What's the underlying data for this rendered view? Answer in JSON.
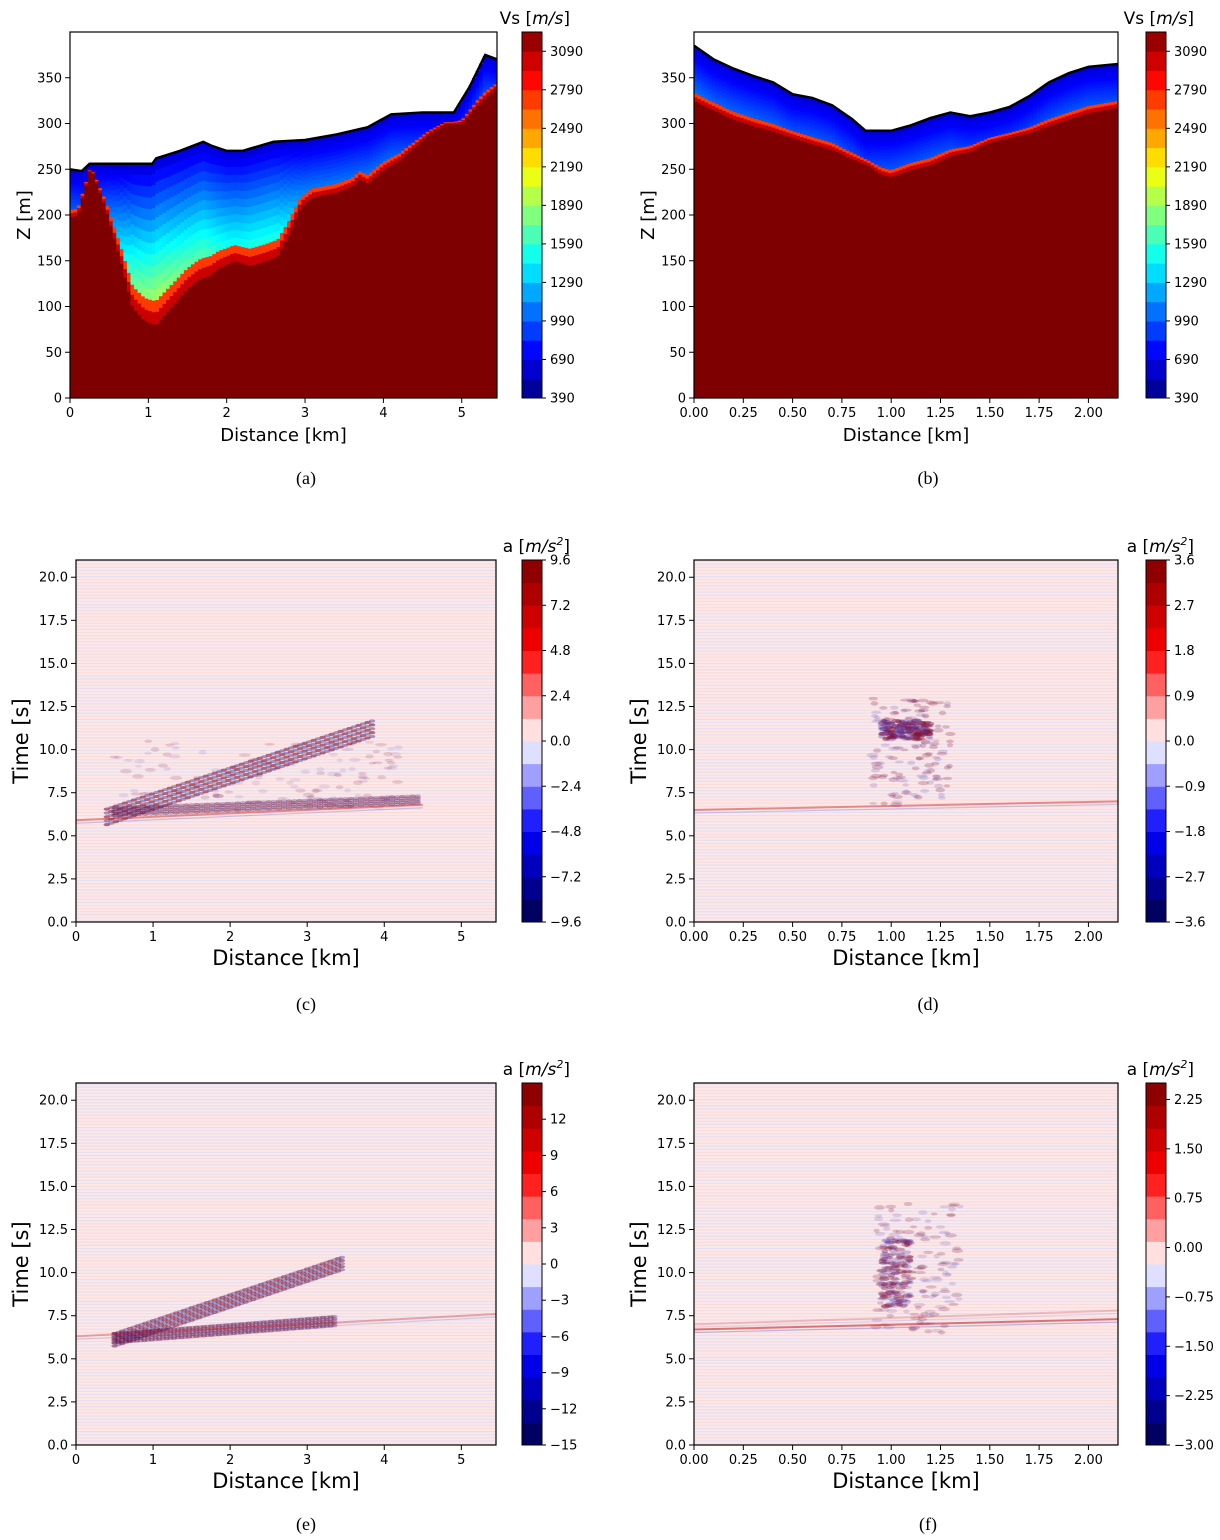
{
  "panels": [
    {
      "id": "a",
      "caption": "(a)",
      "chart_data": {
        "type": "heatmap",
        "kind": "velocity_section",
        "xlabel": "Distance [km]",
        "ylabel": "Z [m]",
        "xlim": [
          0,
          5.45
        ],
        "ylim": [
          0,
          400
        ],
        "xticks": [
          0,
          1,
          2,
          3,
          4,
          5
        ],
        "xtick_labels": [
          "0",
          "1",
          "2",
          "3",
          "4",
          "5"
        ],
        "yticks": [
          0,
          50,
          100,
          150,
          200,
          250,
          300,
          350
        ],
        "ytick_labels": [
          "0",
          "50",
          "100",
          "150",
          "200",
          "250",
          "300",
          "350"
        ],
        "colorbar_label": "Vs [m/s]",
        "colorbar_range": [
          390,
          3240
        ],
        "colorbar_ticks": [
          390,
          690,
          990,
          1290,
          1590,
          1890,
          2190,
          2490,
          2790,
          3090
        ],
        "colorbar_tick_labels": [
          "390",
          "690",
          "990",
          "1290",
          "1590",
          "1890",
          "2190",
          "2490",
          "2790",
          "3090"
        ],
        "colormap": "jet",
        "surface": [
          [
            0,
            250
          ],
          [
            0.15,
            248
          ],
          [
            0.25,
            256
          ],
          [
            1.05,
            256
          ],
          [
            1.1,
            262
          ],
          [
            1.4,
            270
          ],
          [
            1.7,
            280
          ],
          [
            1.8,
            276
          ],
          [
            2.0,
            270
          ],
          [
            2.2,
            270
          ],
          [
            2.6,
            280
          ],
          [
            3.0,
            282
          ],
          [
            3.4,
            288
          ],
          [
            3.8,
            296
          ],
          [
            4.1,
            310
          ],
          [
            4.5,
            312
          ],
          [
            4.9,
            312
          ],
          [
            5.1,
            340
          ],
          [
            5.3,
            375
          ],
          [
            5.45,
            370
          ]
        ],
        "basement": [
          [
            0,
            198
          ],
          [
            0.1,
            200
          ],
          [
            0.25,
            248
          ],
          [
            0.3,
            245
          ],
          [
            0.45,
            210
          ],
          [
            0.65,
            150
          ],
          [
            0.8,
            100
          ],
          [
            0.95,
            85
          ],
          [
            1.1,
            80
          ],
          [
            1.3,
            100
          ],
          [
            1.5,
            120
          ],
          [
            1.65,
            130
          ],
          [
            1.8,
            135
          ],
          [
            1.9,
            142
          ],
          [
            2.1,
            150
          ],
          [
            2.3,
            145
          ],
          [
            2.5,
            150
          ],
          [
            2.65,
            155
          ],
          [
            2.8,
            180
          ],
          [
            2.95,
            210
          ],
          [
            3.1,
            220
          ],
          [
            3.4,
            225
          ],
          [
            3.6,
            232
          ],
          [
            3.7,
            240
          ],
          [
            3.8,
            235
          ],
          [
            4.0,
            250
          ],
          [
            4.2,
            260
          ],
          [
            4.4,
            275
          ],
          [
            4.6,
            290
          ],
          [
            4.8,
            300
          ],
          [
            5.0,
            300
          ],
          [
            5.2,
            320
          ],
          [
            5.45,
            340
          ]
        ]
      }
    },
    {
      "id": "b",
      "caption": "(b)",
      "chart_data": {
        "type": "heatmap",
        "kind": "velocity_section",
        "xlabel": "Distance [km]",
        "ylabel": "Z [m]",
        "xlim": [
          0,
          2.15
        ],
        "ylim": [
          0,
          400
        ],
        "xticks": [
          0,
          0.25,
          0.5,
          0.75,
          1.0,
          1.25,
          1.5,
          1.75,
          2.0
        ],
        "xtick_labels": [
          "0.00",
          "0.25",
          "0.50",
          "0.75",
          "1.00",
          "1.25",
          "1.50",
          "1.75",
          "2.00"
        ],
        "yticks": [
          0,
          50,
          100,
          150,
          200,
          250,
          300,
          350
        ],
        "ytick_labels": [
          "0",
          "50",
          "100",
          "150",
          "200",
          "250",
          "300",
          "350"
        ],
        "colorbar_label": "Vs [m/s]",
        "colorbar_range": [
          390,
          3240
        ],
        "colorbar_ticks": [
          390,
          690,
          990,
          1290,
          1590,
          1890,
          2190,
          2490,
          2790,
          3090
        ],
        "colorbar_tick_labels": [
          "390",
          "690",
          "990",
          "1290",
          "1590",
          "1890",
          "2190",
          "2490",
          "2790",
          "3090"
        ],
        "colormap": "jet",
        "surface": [
          [
            0,
            385
          ],
          [
            0.1,
            370
          ],
          [
            0.2,
            360
          ],
          [
            0.3,
            352
          ],
          [
            0.4,
            345
          ],
          [
            0.5,
            332
          ],
          [
            0.6,
            328
          ],
          [
            0.7,
            320
          ],
          [
            0.8,
            305
          ],
          [
            0.87,
            292
          ],
          [
            1.0,
            292
          ],
          [
            1.1,
            298
          ],
          [
            1.2,
            306
          ],
          [
            1.3,
            312
          ],
          [
            1.4,
            308
          ],
          [
            1.5,
            312
          ],
          [
            1.6,
            318
          ],
          [
            1.7,
            330
          ],
          [
            1.8,
            345
          ],
          [
            1.9,
            355
          ],
          [
            2.0,
            362
          ],
          [
            2.15,
            365
          ]
        ],
        "basement": [
          [
            0,
            325
          ],
          [
            0.1,
            315
          ],
          [
            0.2,
            305
          ],
          [
            0.3,
            298
          ],
          [
            0.4,
            292
          ],
          [
            0.5,
            285
          ],
          [
            0.6,
            278
          ],
          [
            0.7,
            272
          ],
          [
            0.8,
            262
          ],
          [
            0.88,
            255
          ],
          [
            0.95,
            245
          ],
          [
            1.0,
            242
          ],
          [
            1.1,
            250
          ],
          [
            1.2,
            255
          ],
          [
            1.3,
            265
          ],
          [
            1.4,
            270
          ],
          [
            1.5,
            280
          ],
          [
            1.6,
            285
          ],
          [
            1.7,
            290
          ],
          [
            1.8,
            298
          ],
          [
            1.9,
            305
          ],
          [
            2.0,
            312
          ],
          [
            2.15,
            318
          ]
        ]
      }
    },
    {
      "id": "c",
      "caption": "(c)",
      "chart_data": {
        "type": "heatmap",
        "kind": "seismogram_section",
        "xlabel": "Distance [km]",
        "ylabel": "Time [s]",
        "xlim": [
          0,
          5.45
        ],
        "ylim": [
          0,
          21
        ],
        "xticks": [
          0,
          1,
          2,
          3,
          4,
          5
        ],
        "xtick_labels": [
          "0",
          "1",
          "2",
          "3",
          "4",
          "5"
        ],
        "yticks": [
          0,
          2.5,
          5,
          7.5,
          10,
          12.5,
          15,
          17.5,
          20
        ],
        "ytick_labels": [
          "0.0",
          "2.5",
          "5.0",
          "7.5",
          "10.0",
          "12.5",
          "15.0",
          "17.5",
          "20.0"
        ],
        "colorbar_label_base": "a [m/s",
        "colorbar_label_sup": "2",
        "colorbar_label_end": "]",
        "colorbar_range": [
          -9.6,
          9.6
        ],
        "colorbar_ticks": [
          -9.6,
          -7.2,
          -4.8,
          -2.4,
          0.0,
          2.4,
          4.8,
          7.2,
          9.6
        ],
        "colorbar_tick_labels": [
          "−9.6",
          "−7.2",
          "−4.8",
          "−2.4",
          "0.0",
          "2.4",
          "4.8",
          "7.2",
          "9.6"
        ],
        "colormap": "seismic",
        "features": [
          {
            "kind": "band",
            "x0": 0.4,
            "t0": 6.1,
            "x1": 3.9,
            "t1": 11.3,
            "width": 0.5,
            "strength": 1.0
          },
          {
            "kind": "band",
            "x0": 0.5,
            "t0": 6.4,
            "x1": 4.5,
            "t1": 7.1,
            "width": 0.25,
            "strength": 0.7
          },
          {
            "kind": "blob",
            "x0": 0.5,
            "x1": 4.2,
            "t0": 6.5,
            "t1": 10.5,
            "strength": 0.35
          },
          {
            "kind": "line",
            "x0": 0,
            "t0": 5.9,
            "x1": 4.5,
            "t1": 6.8,
            "strength": 0.8
          }
        ]
      }
    },
    {
      "id": "d",
      "caption": "(d)",
      "chart_data": {
        "type": "heatmap",
        "kind": "seismogram_section",
        "xlabel": "Distance [km]",
        "ylabel": "Time [s]",
        "xlim": [
          0,
          2.15
        ],
        "ylim": [
          0,
          21
        ],
        "xticks": [
          0,
          0.25,
          0.5,
          0.75,
          1.0,
          1.25,
          1.5,
          1.75,
          2.0
        ],
        "xtick_labels": [
          "0.00",
          "0.25",
          "0.50",
          "0.75",
          "1.00",
          "1.25",
          "1.50",
          "1.75",
          "2.00"
        ],
        "yticks": [
          0,
          2.5,
          5,
          7.5,
          10,
          12.5,
          15,
          17.5,
          20
        ],
        "ytick_labels": [
          "0.0",
          "2.5",
          "5.0",
          "7.5",
          "10.0",
          "12.5",
          "15.0",
          "17.5",
          "20.0"
        ],
        "colorbar_label_base": "a [m/s",
        "colorbar_label_sup": "2",
        "colorbar_label_end": "]",
        "colorbar_range": [
          -3.6,
          3.6
        ],
        "colorbar_ticks": [
          -3.6,
          -2.7,
          -1.8,
          -0.9,
          0.0,
          0.9,
          1.8,
          2.7,
          3.6
        ],
        "colorbar_tick_labels": [
          "−3.6",
          "−2.7",
          "−1.8",
          "−0.9",
          "0.0",
          "0.9",
          "1.8",
          "2.7",
          "3.6"
        ],
        "colormap": "seismic",
        "features": [
          {
            "kind": "blob",
            "x0": 0.9,
            "x1": 1.3,
            "t0": 6.8,
            "t1": 13.0,
            "strength": 0.55
          },
          {
            "kind": "blob",
            "x0": 0.95,
            "x1": 1.2,
            "t0": 10.6,
            "t1": 11.7,
            "strength": 1.0
          },
          {
            "kind": "line",
            "x0": 0,
            "t0": 6.5,
            "x1": 2.15,
            "t1": 7.0,
            "strength": 0.8
          }
        ]
      }
    },
    {
      "id": "e",
      "caption": "(e)",
      "chart_data": {
        "type": "heatmap",
        "kind": "seismogram_section",
        "xlabel": "Distance [km]",
        "ylabel": "Time [s]",
        "xlim": [
          0,
          5.45
        ],
        "ylim": [
          0,
          21
        ],
        "xticks": [
          0,
          1,
          2,
          3,
          4,
          5
        ],
        "xtick_labels": [
          "0",
          "1",
          "2",
          "3",
          "4",
          "5"
        ],
        "yticks": [
          0,
          2.5,
          5,
          7.5,
          10,
          12.5,
          15,
          17.5,
          20
        ],
        "ytick_labels": [
          "0.0",
          "2.5",
          "5.0",
          "7.5",
          "10.0",
          "12.5",
          "15.0",
          "17.5",
          "20.0"
        ],
        "colorbar_label_base": "a [m/s",
        "colorbar_label_sup": "2",
        "colorbar_label_end": "]",
        "colorbar_range": [
          -15,
          15
        ],
        "colorbar_ticks": [
          -15,
          -12,
          -9,
          -6,
          -3,
          0,
          3,
          6,
          9,
          12
        ],
        "colorbar_tick_labels": [
          "−15",
          "−12",
          "−9",
          "−6",
          "−3",
          "0",
          "3",
          "6",
          "9",
          "12"
        ],
        "colormap": "seismic",
        "features": [
          {
            "kind": "band",
            "x0": 0.5,
            "t0": 6.1,
            "x1": 3.5,
            "t1": 10.6,
            "width": 0.4,
            "strength": 0.9
          },
          {
            "kind": "band",
            "x0": 0.5,
            "t0": 6.2,
            "x1": 3.4,
            "t1": 7.2,
            "width": 0.3,
            "strength": 0.8
          },
          {
            "kind": "line",
            "x0": 0,
            "t0": 6.3,
            "x1": 5.45,
            "t1": 7.6,
            "strength": 0.6
          }
        ]
      }
    },
    {
      "id": "f",
      "caption": "(f)",
      "chart_data": {
        "type": "heatmap",
        "kind": "seismogram_section",
        "xlabel": "Distance [km]",
        "ylabel": "Time [s]",
        "xlim": [
          0,
          2.15
        ],
        "ylim": [
          0,
          21
        ],
        "xticks": [
          0,
          0.25,
          0.5,
          0.75,
          1.0,
          1.25,
          1.5,
          1.75,
          2.0
        ],
        "xtick_labels": [
          "0.00",
          "0.25",
          "0.50",
          "0.75",
          "1.00",
          "1.25",
          "1.50",
          "1.75",
          "2.00"
        ],
        "yticks": [
          0,
          2.5,
          5,
          7.5,
          10,
          12.5,
          15,
          17.5,
          20
        ],
        "ytick_labels": [
          "0.0",
          "2.5",
          "5.0",
          "7.5",
          "10.0",
          "12.5",
          "15.0",
          "17.5",
          "20.0"
        ],
        "colorbar_label_base": "a [m/s",
        "colorbar_label_sup": "2",
        "colorbar_label_end": "]",
        "colorbar_range": [
          -3.0,
          2.5
        ],
        "colorbar_ticks": [
          -3.0,
          -2.25,
          -1.5,
          -0.75,
          0.0,
          0.75,
          1.5,
          2.25
        ],
        "colorbar_tick_labels": [
          "−3.00",
          "−2.25",
          "−1.50",
          "−0.75",
          "0.00",
          "0.75",
          "1.50",
          "2.25"
        ],
        "colormap": "seismic",
        "features": [
          {
            "kind": "blob",
            "x0": 0.92,
            "x1": 1.35,
            "t0": 6.5,
            "t1": 14.0,
            "strength": 0.5
          },
          {
            "kind": "blob",
            "x0": 0.95,
            "x1": 1.1,
            "t0": 8.0,
            "t1": 12.0,
            "strength": 0.8
          },
          {
            "kind": "line",
            "x0": 0,
            "t0": 6.7,
            "x1": 2.15,
            "t1": 7.3,
            "strength": 1.0
          },
          {
            "kind": "line",
            "x0": 0,
            "t0": 7.0,
            "x1": 2.15,
            "t1": 7.8,
            "strength": 0.4
          }
        ]
      }
    }
  ]
}
